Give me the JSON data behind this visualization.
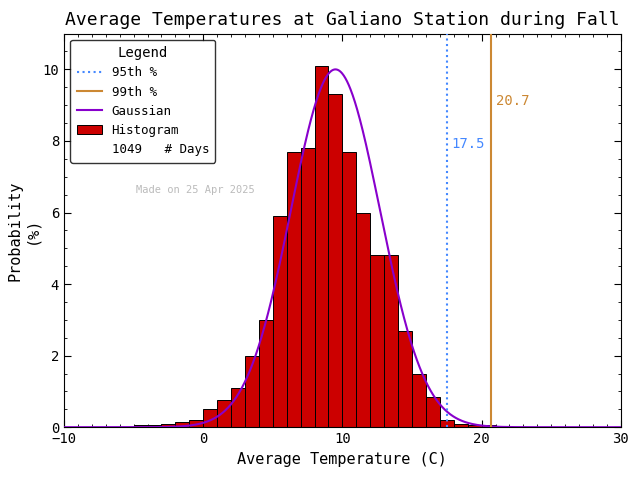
{
  "title": "Average Temperatures at Galiano Station during Fall",
  "xlabel": "Average Temperature (C)",
  "ylabel": "Probability\n(%)",
  "xlim": [
    -10,
    30
  ],
  "ylim": [
    0,
    11
  ],
  "yticks": [
    0,
    2,
    4,
    6,
    8,
    10
  ],
  "xticks": [
    -10,
    0,
    10,
    20,
    30
  ],
  "bar_lefts": [
    -5,
    -4,
    -3,
    -2,
    -1,
    0,
    1,
    2,
    3,
    4,
    5,
    6,
    7,
    8,
    9,
    10,
    11,
    12,
    13,
    14,
    15,
    16,
    17,
    18,
    19,
    20,
    21,
    22,
    23,
    24
  ],
  "bar_heights": [
    0.05,
    0.05,
    0.1,
    0.15,
    0.2,
    0.5,
    0.75,
    1.1,
    2.0,
    3.0,
    5.9,
    7.7,
    7.8,
    10.1,
    9.3,
    7.7,
    6.0,
    4.8,
    4.8,
    2.7,
    1.5,
    0.85,
    0.2,
    0.1,
    0.05,
    0.05,
    0.0,
    0.0,
    0.0,
    0.0
  ],
  "gauss_mean": 9.5,
  "gauss_std": 3.2,
  "gauss_amp": 10.0,
  "pct95_val": 17.5,
  "pct99_val": 20.7,
  "n_days": 1049,
  "made_on": "Made on 25 Apr 2025",
  "bar_color": "#cc0000",
  "bar_edge_color": "#000000",
  "gauss_color": "#8800cc",
  "pct95_color": "#4488ff",
  "pct99_color": "#cc8833",
  "watermark_color": "#bbbbbb",
  "background_color": "#ffffff",
  "title_fontsize": 13,
  "axis_fontsize": 11,
  "legend_fontsize": 9,
  "annotation_fontsize": 10
}
